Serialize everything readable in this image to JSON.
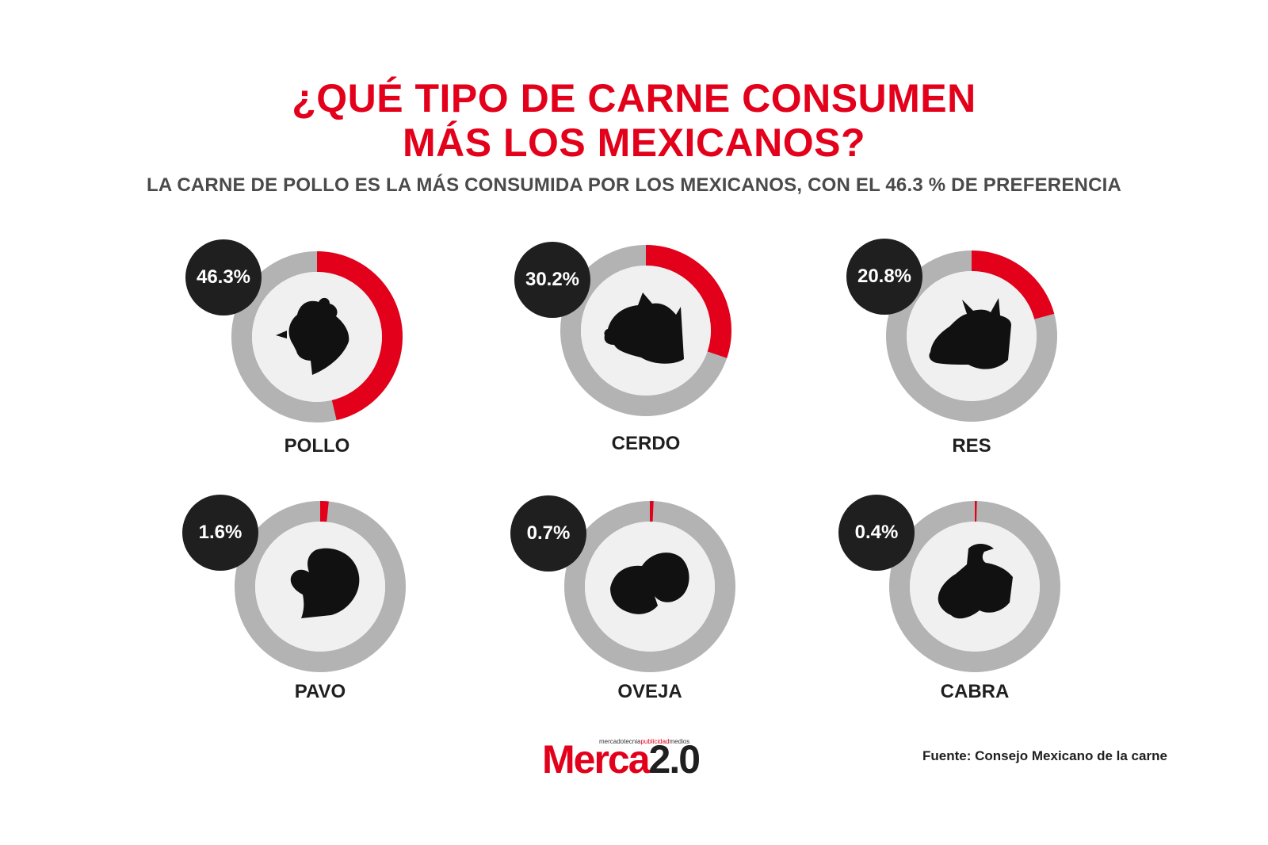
{
  "chart_data": {
    "type": "donut",
    "title": [
      "¿QUÉ TIPO DE CARNE CONSUMEN",
      "MÁS LOS MEXICANOS?"
    ],
    "subtitle": "LA CARNE DE POLLO ES LA MÁS CONSUMIDA POR LOS MEXICANOS, CON EL 46.3 % DE PREFERENCIA",
    "unit": "%",
    "categories": [
      "POLLO",
      "CERDO",
      "RES",
      "PAVO",
      "OVEJA",
      "CABRA"
    ],
    "values": [
      46.3,
      30.2,
      20.8,
      1.6,
      0.7,
      0.4
    ],
    "value_labels": [
      "46.3%",
      "30.2%",
      "20.8%",
      "1.6%",
      "0.7%",
      "0.4%"
    ],
    "icons": [
      "chicken-icon",
      "pig-icon",
      "cow-icon",
      "turkey-icon",
      "sheep-icon",
      "goat-icon"
    ],
    "colors": {
      "highlight": "#e3001b",
      "track": "#b3b3b3",
      "inner": "#f0f0f0",
      "badge": "#1f1f1f",
      "icon": "#111111"
    }
  },
  "footer": {
    "logo_tagline_pre": "mercadotecnia",
    "logo_tagline_mid": "publicidad",
    "logo_tagline_post": "medios",
    "logo_word_red": "Merca",
    "logo_word_black": "2.0",
    "source": "Fuente: Consejo Mexicano de la carne"
  }
}
